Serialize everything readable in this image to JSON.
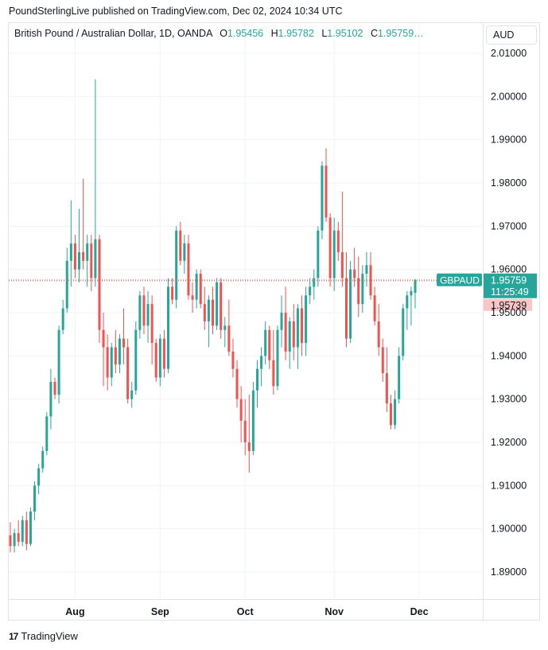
{
  "header": {
    "published_text": "PoundSterlingLive published on TradingView.com, Dec 02, 2024 10:34 UTC"
  },
  "legend": {
    "title": "British Pound / Australian Dollar, 1D, OANDA",
    "o_label": "O",
    "o_value": "1.95456",
    "h_label": "H",
    "h_value": "1.95782",
    "l_label": "L",
    "l_value": "1.95102",
    "c_label": "C",
    "c_value": "1.95759…"
  },
  "currency_button": {
    "label": "AUD"
  },
  "footer": {
    "logo_mark": "17",
    "logo_text": "TradingView"
  },
  "colors": {
    "up": "#26a69a",
    "down": "#ef5350",
    "grid": "#f0f3fa",
    "text": "#131722"
  },
  "chart_data": {
    "type": "candlestick",
    "symbol": "GBPAUD",
    "y_ticks": [
      "2.01000",
      "2.00000",
      "1.99000",
      "1.98000",
      "1.97000",
      "1.96000",
      "1.95000",
      "1.94000",
      "1.93000",
      "1.92000",
      "1.91000",
      "1.90000",
      "1.89000"
    ],
    "x_ticks": [
      {
        "label": "Aug",
        "index": 16
      },
      {
        "label": "Sep",
        "index": 37
      },
      {
        "label": "Oct",
        "index": 58
      },
      {
        "label": "Nov",
        "index": 80
      },
      {
        "label": "Dec",
        "index": 101
      }
    ],
    "price_line": {
      "value": 1.95759,
      "label": "GBPAUD",
      "value_label": "1.95759",
      "countdown": "11:25:49"
    },
    "prev_close": {
      "value": 1.95739,
      "label": "1.95739"
    },
    "candles": [
      [
        1.8985,
        1.9015,
        1.8945,
        1.896
      ],
      [
        1.896,
        1.9,
        1.8945,
        1.899
      ],
      [
        1.899,
        1.902,
        1.896,
        1.897
      ],
      [
        1.897,
        1.903,
        1.896,
        1.902
      ],
      [
        1.902,
        1.904,
        1.895,
        1.8965
      ],
      [
        1.8965,
        1.905,
        1.896,
        1.904
      ],
      [
        1.904,
        1.911,
        1.902,
        1.91
      ],
      [
        1.91,
        1.915,
        1.908,
        1.914
      ],
      [
        1.914,
        1.919,
        1.913,
        1.918
      ],
      [
        1.918,
        1.927,
        1.917,
        1.926
      ],
      [
        1.926,
        1.937,
        1.923,
        1.934
      ],
      [
        1.934,
        1.935,
        1.93,
        1.931
      ],
      [
        1.931,
        1.947,
        1.929,
        1.946
      ],
      [
        1.946,
        1.953,
        1.945,
        1.951
      ],
      [
        1.951,
        1.965,
        1.95,
        1.962
      ],
      [
        1.962,
        1.976,
        1.956,
        1.966
      ],
      [
        1.966,
        1.968,
        1.958,
        1.96
      ],
      [
        1.96,
        1.974,
        1.957,
        1.964
      ],
      [
        1.964,
        1.981,
        1.96,
        1.962
      ],
      [
        1.962,
        1.968,
        1.956,
        1.966
      ],
      [
        1.966,
        1.968,
        1.955,
        1.958
      ],
      [
        1.958,
        2.004,
        1.956,
        1.967
      ],
      [
        1.967,
        1.968,
        1.943,
        1.946
      ],
      [
        1.946,
        1.95,
        1.933,
        1.942
      ],
      [
        1.942,
        1.945,
        1.932,
        1.935
      ],
      [
        1.935,
        1.943,
        1.933,
        1.942
      ],
      [
        1.942,
        1.946,
        1.936,
        1.938
      ],
      [
        1.938,
        1.945,
        1.936,
        1.944
      ],
      [
        1.944,
        1.951,
        1.938,
        1.942
      ],
      [
        1.942,
        1.944,
        1.929,
        1.93
      ],
      [
        1.93,
        1.934,
        1.928,
        1.932
      ],
      [
        1.932,
        1.948,
        1.931,
        1.946
      ],
      [
        1.946,
        1.955,
        1.944,
        1.954
      ],
      [
        1.954,
        1.956,
        1.945,
        1.947
      ],
      [
        1.947,
        1.955,
        1.943,
        1.952
      ],
      [
        1.952,
        1.954,
        1.938,
        1.943
      ],
      [
        1.943,
        1.944,
        1.934,
        1.935
      ],
      [
        1.935,
        1.945,
        1.933,
        1.944
      ],
      [
        1.944,
        1.946,
        1.935,
        1.937
      ],
      [
        1.937,
        1.958,
        1.936,
        1.956
      ],
      [
        1.956,
        1.958,
        1.952,
        1.953
      ],
      [
        1.953,
        1.97,
        1.951,
        1.969
      ],
      [
        1.969,
        1.971,
        1.961,
        1.962
      ],
      [
        1.962,
        1.968,
        1.959,
        1.966
      ],
      [
        1.966,
        1.968,
        1.953,
        1.954
      ],
      [
        1.954,
        1.957,
        1.95,
        1.953
      ],
      [
        1.953,
        1.96,
        1.951,
        1.959
      ],
      [
        1.959,
        1.96,
        1.951,
        1.952
      ],
      [
        1.952,
        1.956,
        1.946,
        1.948
      ],
      [
        1.948,
        1.954,
        1.942,
        1.953
      ],
      [
        1.953,
        1.956,
        1.945,
        1.947
      ],
      [
        1.947,
        1.958,
        1.946,
        1.957
      ],
      [
        1.957,
        1.958,
        1.944,
        1.946
      ],
      [
        1.946,
        1.949,
        1.942,
        1.947
      ],
      [
        1.947,
        1.953,
        1.94,
        1.941
      ],
      [
        1.941,
        1.944,
        1.935,
        1.937
      ],
      [
        1.937,
        1.939,
        1.928,
        1.93
      ],
      [
        1.93,
        1.933,
        1.92,
        1.925
      ],
      [
        1.925,
        1.93,
        1.917,
        1.92
      ],
      [
        1.92,
        1.931,
        1.913,
        1.918
      ],
      [
        1.918,
        1.934,
        1.917,
        1.932
      ],
      [
        1.932,
        1.939,
        1.928,
        1.937
      ],
      [
        1.937,
        1.942,
        1.933,
        1.94
      ],
      [
        1.94,
        1.948,
        1.938,
        1.946
      ],
      [
        1.946,
        1.947,
        1.937,
        1.939
      ],
      [
        1.939,
        1.946,
        1.931,
        1.933
      ],
      [
        1.933,
        1.947,
        1.932,
        1.946
      ],
      [
        1.946,
        1.954,
        1.942,
        1.95
      ],
      [
        1.95,
        1.956,
        1.939,
        1.941
      ],
      [
        1.941,
        1.949,
        1.937,
        1.948
      ],
      [
        1.948,
        1.952,
        1.939,
        1.942
      ],
      [
        1.942,
        1.952,
        1.937,
        1.951
      ],
      [
        1.951,
        1.954,
        1.94,
        1.943
      ],
      [
        1.943,
        1.956,
        1.94,
        1.954
      ],
      [
        1.954,
        1.958,
        1.952,
        1.956
      ],
      [
        1.956,
        1.96,
        1.953,
        1.958
      ],
      [
        1.958,
        1.97,
        1.956,
        1.969
      ],
      [
        1.969,
        1.985,
        1.967,
        1.984
      ],
      [
        1.984,
        1.988,
        1.971,
        1.972
      ],
      [
        1.972,
        1.973,
        1.956,
        1.958
      ],
      [
        1.958,
        1.972,
        1.955,
        1.969
      ],
      [
        1.969,
        1.971,
        1.962,
        1.964
      ],
      [
        1.964,
        1.978,
        1.956,
        1.958
      ],
      [
        1.958,
        1.964,
        1.942,
        1.944
      ],
      [
        1.944,
        1.962,
        1.943,
        1.96
      ],
      [
        1.96,
        1.965,
        1.956,
        1.958
      ],
      [
        1.958,
        1.963,
        1.949,
        1.952
      ],
      [
        1.952,
        1.961,
        1.95,
        1.959
      ],
      [
        1.959,
        1.964,
        1.956,
        1.961
      ],
      [
        1.961,
        1.964,
        1.953,
        1.954
      ],
      [
        1.954,
        1.956,
        1.947,
        1.948
      ],
      [
        1.948,
        1.952,
        1.94,
        1.942
      ],
      [
        1.942,
        1.944,
        1.934,
        1.936
      ],
      [
        1.936,
        1.942,
        1.927,
        1.929
      ],
      [
        1.929,
        1.931,
        1.923,
        1.924
      ],
      [
        1.924,
        1.932,
        1.923,
        1.93
      ],
      [
        1.93,
        1.942,
        1.929,
        1.94
      ],
      [
        1.94,
        1.952,
        1.939,
        1.951
      ],
      [
        1.951,
        1.955,
        1.946,
        1.954
      ],
      [
        1.954,
        1.956,
        1.947,
        1.955
      ],
      [
        1.9546,
        1.9578,
        1.951,
        1.9576
      ]
    ]
  }
}
